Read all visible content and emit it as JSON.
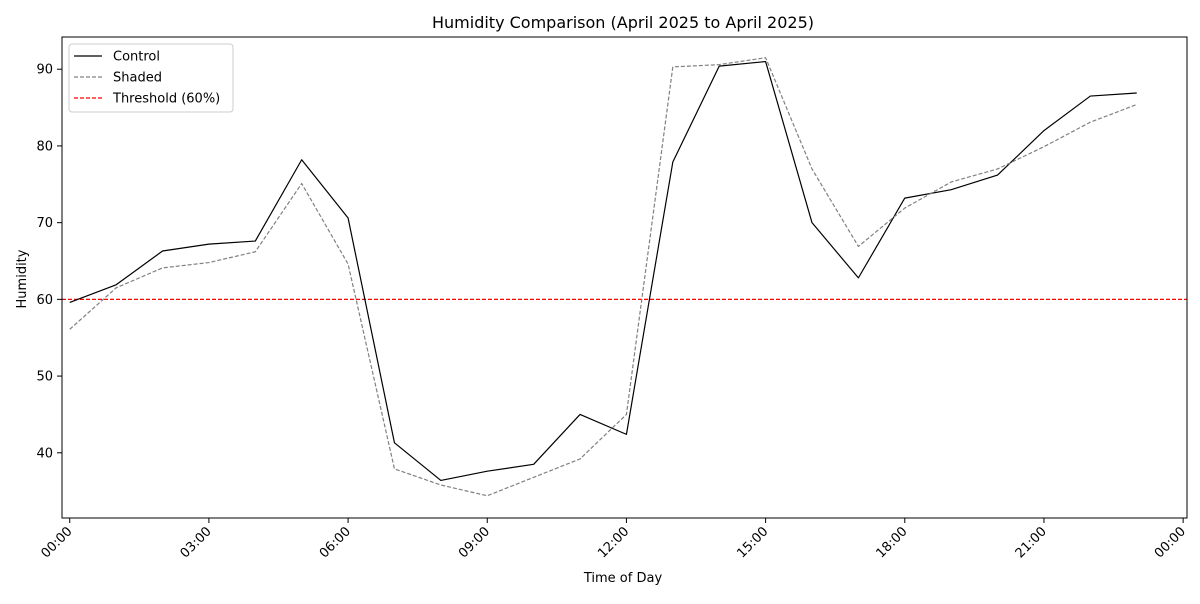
{
  "chart_data": {
    "type": "line",
    "title": "Humidity Comparison (April 2025 to April 2025)",
    "xlabel": "Time of Day",
    "ylabel": "Humidity",
    "x": [
      "00:00",
      "01:00",
      "02:00",
      "03:00",
      "04:00",
      "05:00",
      "06:00",
      "07:00",
      "08:00",
      "09:00",
      "10:00",
      "11:00",
      "12:00",
      "13:00",
      "14:00",
      "15:00",
      "16:00",
      "17:00",
      "18:00",
      "19:00",
      "20:00",
      "21:00",
      "22:00",
      "23:00"
    ],
    "x_ticks": [
      "00:00",
      "03:00",
      "06:00",
      "09:00",
      "12:00",
      "15:00",
      "18:00",
      "21:00",
      "00:00"
    ],
    "xlim": [
      "23:50 (prev day)",
      "00:05 (next day)"
    ],
    "ylim": [
      31.5,
      94.2
    ],
    "y_ticks": [
      40,
      50,
      60,
      70,
      80,
      90
    ],
    "grid": false,
    "legend_position": "top-left",
    "series": [
      {
        "name": "Control",
        "color": "#000000",
        "style": "solid",
        "values": [
          59.6,
          61.9,
          66.3,
          67.2,
          67.6,
          78.2,
          70.6,
          41.3,
          36.4,
          37.6,
          38.5,
          45.0,
          42.4,
          77.9,
          90.4,
          91.0,
          70.0,
          62.8,
          73.2,
          74.3,
          76.2,
          82.0,
          86.5,
          86.9
        ]
      },
      {
        "name": "Shaded",
        "color": "#808080",
        "style": "dashed",
        "values": [
          56.1,
          61.5,
          64.1,
          64.8,
          66.2,
          75.1,
          64.6,
          37.9,
          35.8,
          34.4,
          36.8,
          39.2,
          45.0,
          90.3,
          90.6,
          91.5,
          77.0,
          66.9,
          71.9,
          75.3,
          77.0,
          79.9,
          83.1,
          85.4
        ]
      }
    ],
    "reference_lines": [
      {
        "name": "Threshold (60%)",
        "value": 60,
        "color": "#ff0000",
        "style": "dashed"
      }
    ]
  }
}
